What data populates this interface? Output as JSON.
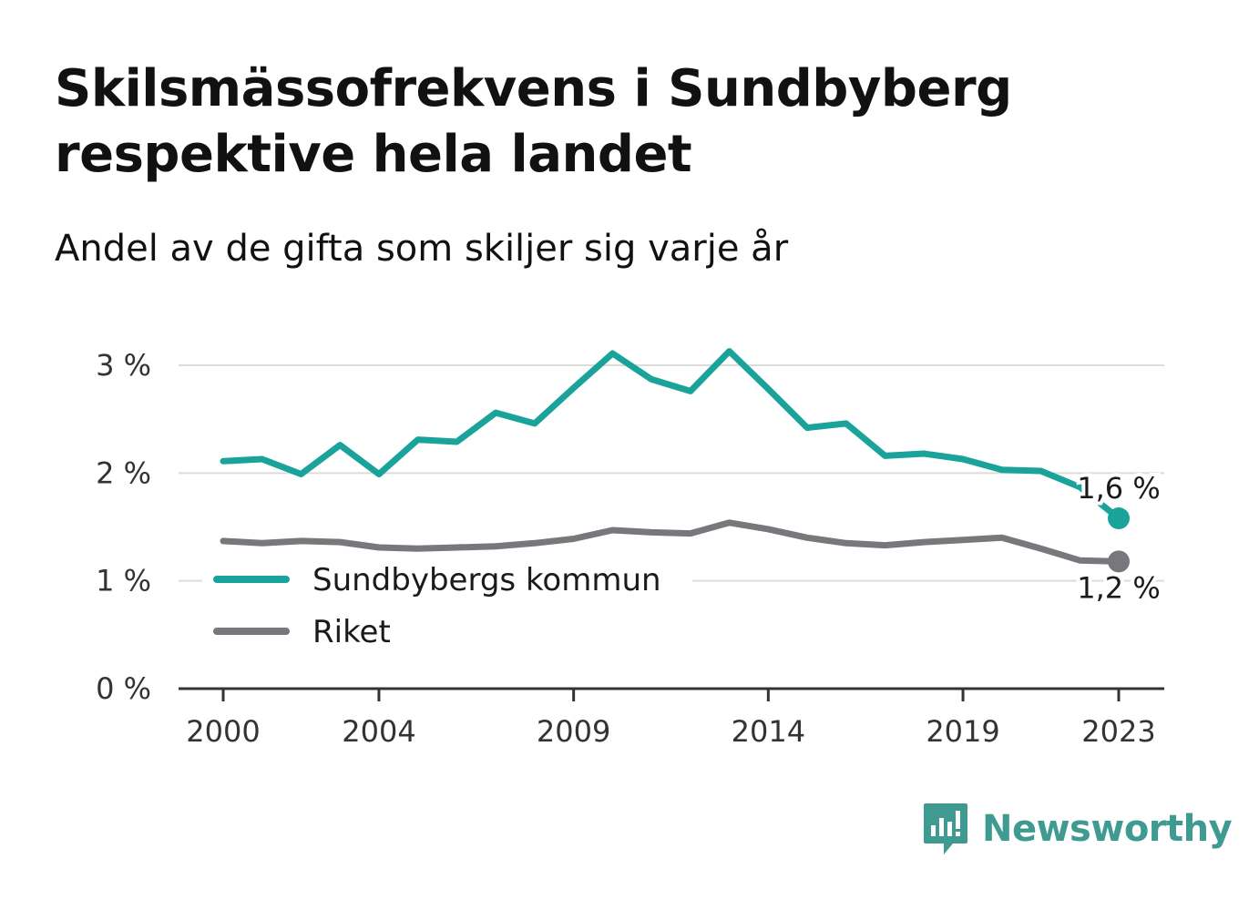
{
  "title": "Skilsmässofrekvens i Sundbyberg respektive hela landet",
  "subtitle": "Andel av de gifta som skiljer sig varje år",
  "brand": "Newsworthy",
  "chart_data": {
    "type": "line",
    "title": "Skilsmässofrekvens i Sundbyberg respektive hela landet",
    "subtitle": "Andel av de gifta som skiljer sig varje år",
    "x": [
      2000,
      2001,
      2002,
      2003,
      2004,
      2005,
      2006,
      2007,
      2008,
      2009,
      2010,
      2011,
      2012,
      2013,
      2014,
      2015,
      2016,
      2017,
      2018,
      2019,
      2020,
      2021,
      2022,
      2023
    ],
    "x_ticks": [
      2000,
      2004,
      2009,
      2014,
      2019,
      2023
    ],
    "x_tick_labels": [
      "2000",
      "2004",
      "2009",
      "2014",
      "2019",
      "2023"
    ],
    "ylim": [
      0,
      3
    ],
    "y_ticks": [
      0,
      1,
      2,
      3
    ],
    "y_tick_labels": [
      "0 %",
      "1 %",
      "2 %",
      "3 %"
    ],
    "grid": true,
    "legend_position": "bottom-left",
    "series": [
      {
        "name": "Sundbybergs kommun",
        "color": "#1aa39a",
        "values": [
          2.11,
          2.13,
          1.99,
          2.26,
          1.99,
          2.31,
          2.29,
          2.56,
          2.46,
          2.79,
          3.11,
          2.87,
          2.76,
          3.13,
          2.78,
          2.42,
          2.46,
          2.16,
          2.18,
          2.13,
          2.03,
          2.02,
          1.87,
          1.58
        ],
        "end_label": "1,6 %"
      },
      {
        "name": "Riket",
        "color": "#77777c",
        "values": [
          1.37,
          1.35,
          1.37,
          1.36,
          1.31,
          1.3,
          1.31,
          1.32,
          1.35,
          1.39,
          1.47,
          1.45,
          1.44,
          1.54,
          1.48,
          1.4,
          1.35,
          1.33,
          1.36,
          1.38,
          1.4,
          1.3,
          1.19,
          1.18
        ],
        "end_label": "1,2 %"
      }
    ]
  }
}
